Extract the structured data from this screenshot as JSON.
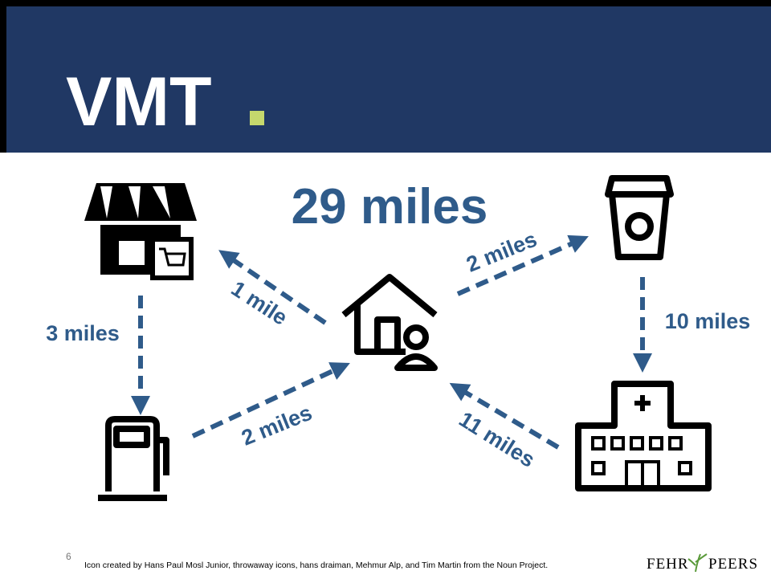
{
  "header": {
    "title": "VMT"
  },
  "total": "29 miles",
  "trips": [
    {
      "label": "1 mile"
    },
    {
      "label": "3 miles"
    },
    {
      "label": "2 miles"
    },
    {
      "label": "2 miles"
    },
    {
      "label": "10 miles"
    },
    {
      "label": "11 miles"
    }
  ],
  "footer": {
    "slide_number": "6",
    "credit": "Icon created by Hans Paul Mosl Junior, throwaway icons, hans draiman, Mehmur Alp, and Tim Martin from the Noun Project.",
    "logo": {
      "left": "FEHR",
      "right": "PEERS"
    }
  }
}
